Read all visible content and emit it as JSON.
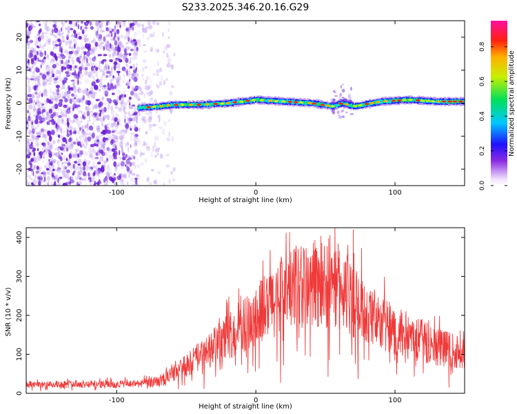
{
  "title": "S233.2025.346.20.16.G29",
  "colors": {
    "background": "#ffffff",
    "snr_line": "#f03a3a",
    "scatter_low": "#d9c8f7",
    "scatter_high": "#6a1fd6"
  },
  "chart_data": [
    {
      "type": "heatmap",
      "name": "spectrogram",
      "xlabel": "Height of straight line (km)",
      "ylabel": "Frequency (Hz)",
      "xlim": [
        -165,
        150
      ],
      "ylim": [
        -25,
        25
      ],
      "xticks": [
        -100,
        0,
        100
      ],
      "xtick_labels": [
        "-100",
        "0",
        "100"
      ],
      "yticks": [
        -20,
        -10,
        0,
        10,
        20
      ],
      "ytick_labels": [
        "-20",
        "-10",
        "0",
        "10",
        "20"
      ],
      "noise_region_x": [
        -165,
        -65
      ],
      "signal_start_x": -85,
      "signal_band_hz": [
        -2,
        2
      ],
      "disturbance_x": 62,
      "ridge": {
        "x": [
          -85,
          -70,
          -60,
          -40,
          -20,
          0,
          20,
          40,
          55,
          62,
          70,
          90,
          110,
          130,
          150
        ],
        "y": [
          -1.5,
          -1.0,
          -0.5,
          -0.5,
          0,
          1.0,
          0.5,
          0,
          -1.0,
          0,
          -1.0,
          0.5,
          1.0,
          0.5,
          0.5
        ]
      },
      "colorbar": {
        "label": "Normalized spectral amplitude",
        "range": [
          0,
          0.95
        ],
        "ticks": [
          0.0,
          0.2,
          0.4,
          0.6,
          0.8
        ],
        "tick_labels": [
          "0.0",
          "0.2",
          "0.4",
          "0.6",
          "0.8"
        ]
      }
    },
    {
      "type": "line",
      "name": "snr",
      "xlabel": "Height of straight line (km)",
      "ylabel": "SNR (10 * v/v)",
      "xlim": [
        -165,
        150
      ],
      "ylim": [
        0,
        425
      ],
      "xticks": [
        -100,
        0,
        100
      ],
      "xtick_labels": [
        "-100",
        "0",
        "100"
      ],
      "yticks": [
        0,
        100,
        200,
        300,
        400
      ],
      "ytick_labels": [
        "0",
        "100",
        "200",
        "300",
        "400"
      ],
      "envelope": {
        "x": [
          -165,
          -120,
          -90,
          -75,
          -65,
          -55,
          -40,
          -20,
          0,
          20,
          35,
          50,
          60,
          70,
          80,
          100,
          120,
          135,
          150
        ],
        "y": [
          22,
          24,
          24,
          28,
          38,
          60,
          95,
          145,
          200,
          255,
          280,
          290,
          275,
          240,
          200,
          160,
          135,
          115,
          100
        ]
      },
      "spikes": [
        {
          "x": 70,
          "y": 420
        },
        {
          "x": 70.5,
          "y": 360
        },
        {
          "x": 60,
          "y": 320
        }
      ]
    }
  ]
}
